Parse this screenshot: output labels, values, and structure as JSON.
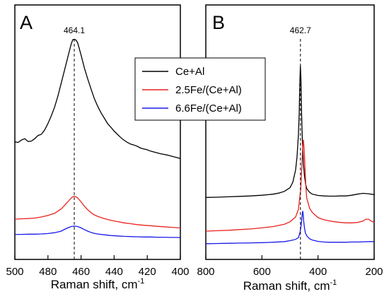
{
  "chart_data": [
    {
      "type": "line",
      "panel_label": "A",
      "xlabel": "Raman shift, cm",
      "xlabel_sup": "-1",
      "ylabel": "",
      "xlim": [
        500,
        400
      ],
      "x_ticks": [
        500,
        480,
        460,
        440,
        420,
        400
      ],
      "x_ticklabels": [
        "500",
        "480",
        "460",
        "440",
        "420",
        "400"
      ],
      "y_ticks_shown": false,
      "reference_line": {
        "x": 464.1,
        "label": "464.1",
        "style": "dashed"
      },
      "series": [
        {
          "name": "Ce+Al",
          "color": "#000000",
          "x": [
            500,
            498,
            496,
            494,
            492,
            490,
            488,
            486,
            484,
            482,
            480,
            478,
            476,
            474,
            472,
            470,
            468,
            466,
            465,
            464,
            463,
            462,
            460,
            458,
            456,
            454,
            452,
            450,
            448,
            446,
            444,
            442,
            440,
            438,
            436,
            434,
            432,
            430,
            428,
            426,
            424,
            422,
            420,
            418,
            416,
            414,
            412,
            410,
            408,
            406,
            404,
            402,
            400
          ],
          "y": [
            0.9,
            0.88,
            0.99,
            1.05,
            0.92,
            0.94,
            1.05,
            1.2,
            1.25,
            1.45,
            1.75,
            2.1,
            2.5,
            3.0,
            3.6,
            4.2,
            4.8,
            5.4,
            5.6,
            5.62,
            5.58,
            5.45,
            4.9,
            4.3,
            3.8,
            3.35,
            2.9,
            2.55,
            2.25,
            2.0,
            1.75,
            1.58,
            1.4,
            1.25,
            1.1,
            0.98,
            0.88,
            0.8,
            0.76,
            0.7,
            0.62,
            0.58,
            0.54,
            0.48,
            0.44,
            0.4,
            0.36,
            0.33,
            0.3,
            0.26,
            0.22,
            0.18,
            0.14
          ]
        },
        {
          "name": "2.5Fe/(Ce+Al)",
          "color": "#e8231e",
          "x": [
            500,
            496,
            492,
            488,
            484,
            480,
            476,
            472,
            470,
            468,
            466,
            465,
            464,
            463,
            462,
            460,
            458,
            456,
            454,
            452,
            450,
            446,
            442,
            438,
            434,
            430,
            426,
            422,
            418,
            414,
            410,
            406,
            402,
            400
          ],
          "y": [
            -2.65,
            -2.63,
            -2.62,
            -2.6,
            -2.55,
            -2.48,
            -2.38,
            -2.18,
            -2.02,
            -1.85,
            -1.68,
            -1.62,
            -1.6,
            -1.62,
            -1.68,
            -1.85,
            -2.05,
            -2.22,
            -2.35,
            -2.45,
            -2.52,
            -2.62,
            -2.7,
            -2.76,
            -2.82,
            -2.86,
            -2.9,
            -2.93,
            -2.95,
            -2.98,
            -3.0,
            -3.02,
            -3.04,
            -3.05
          ]
        },
        {
          "name": "6.6Fe/(Ce+Al)",
          "color": "#1a1ae8",
          "x": [
            500,
            496,
            492,
            488,
            484,
            480,
            476,
            472,
            470,
            468,
            466,
            464,
            462,
            460,
            458,
            456,
            454,
            452,
            450,
            446,
            442,
            438,
            434,
            430,
            426,
            422,
            418,
            414,
            410,
            406,
            402,
            400
          ],
          "y": [
            -3.35,
            -3.35,
            -3.34,
            -3.34,
            -3.33,
            -3.31,
            -3.27,
            -3.2,
            -3.12,
            -3.05,
            -2.99,
            -2.97,
            -2.99,
            -3.05,
            -3.13,
            -3.2,
            -3.26,
            -3.3,
            -3.33,
            -3.37,
            -3.4,
            -3.42,
            -3.44,
            -3.45,
            -3.46,
            -3.47,
            -3.47,
            -3.48,
            -3.48,
            -3.49,
            -3.49,
            -3.5
          ]
        }
      ],
      "ylim": [
        -4.5,
        7.2
      ]
    },
    {
      "type": "line",
      "panel_label": "B",
      "xlabel": "Raman shift, cm",
      "xlabel_sup": "-1",
      "ylabel": "",
      "xlim": [
        800,
        200
      ],
      "x_ticks": [
        800,
        600,
        400,
        200
      ],
      "x_ticklabels": [
        "800",
        "600",
        "400",
        "200"
      ],
      "y_ticks_shown": false,
      "reference_line": {
        "x": 462.7,
        "label": "462.7",
        "style": "dashed"
      },
      "legend": {
        "position": "top-center",
        "entries": [
          "Ce+Al",
          "2.5Fe/(Ce+Al)",
          "6.6Fe/(Ce+Al)"
        ]
      },
      "series": [
        {
          "name": "Ce+Al",
          "color": "#000000",
          "x": [
            800,
            760,
            720,
            680,
            640,
            600,
            560,
            540,
            520,
            500,
            490,
            480,
            475,
            470,
            467,
            465,
            463,
            461,
            459,
            456,
            452,
            448,
            444,
            440,
            430,
            420,
            400,
            380,
            360,
            340,
            320,
            300,
            280,
            260,
            240,
            220,
            200
          ],
          "y": [
            2.05,
            2.06,
            2.08,
            2.1,
            2.12,
            2.15,
            2.2,
            2.25,
            2.33,
            2.5,
            2.75,
            3.3,
            3.9,
            4.9,
            6.0,
            7.3,
            8.1,
            7.5,
            6.0,
            4.7,
            3.6,
            3.0,
            2.65,
            2.45,
            2.28,
            2.2,
            2.14,
            2.12,
            2.11,
            2.11,
            2.12,
            2.12,
            2.15,
            2.2,
            2.24,
            2.22,
            2.18
          ]
        },
        {
          "name": "2.5Fe/(Ce+Al)",
          "color": "#e8231e",
          "x": [
            800,
            760,
            720,
            680,
            640,
            600,
            560,
            520,
            500,
            480,
            470,
            462,
            458,
            455,
            452,
            449,
            446,
            443,
            440,
            430,
            420,
            400,
            380,
            360,
            340,
            320,
            300,
            280,
            260,
            240,
            230,
            220,
            210,
            200
          ],
          "y": [
            0.5,
            0.52,
            0.54,
            0.57,
            0.6,
            0.65,
            0.71,
            0.82,
            0.93,
            1.15,
            1.5,
            2.4,
            3.4,
            4.3,
            4.7,
            4.2,
            3.3,
            2.45,
            2.0,
            1.55,
            1.35,
            1.12,
            1.03,
            0.97,
            0.93,
            0.9,
            0.88,
            0.88,
            0.9,
            0.96,
            1.05,
            1.05,
            0.96,
            0.9
          ]
        },
        {
          "name": "6.6Fe/(Ce+Al)",
          "color": "#1a1ae8",
          "x": [
            800,
            760,
            720,
            680,
            640,
            600,
            560,
            520,
            500,
            480,
            470,
            464,
            460,
            457,
            455,
            453,
            451,
            448,
            445,
            440,
            430,
            420,
            400,
            380,
            360,
            340,
            320,
            300,
            280,
            260,
            240,
            220,
            200
          ],
          "y": [
            -0.08,
            -0.07,
            -0.06,
            -0.05,
            -0.04,
            -0.03,
            -0.01,
            0.02,
            0.06,
            0.12,
            0.2,
            0.45,
            0.8,
            1.2,
            1.43,
            1.3,
            0.95,
            0.62,
            0.42,
            0.28,
            0.15,
            0.09,
            0.03,
            0.0,
            -0.01,
            -0.01,
            -0.01,
            -0.01,
            0.0,
            0.0,
            0.01,
            0.02,
            0.02
          ]
        }
      ],
      "ylim": [
        -0.8,
        10.9
      ]
    }
  ]
}
